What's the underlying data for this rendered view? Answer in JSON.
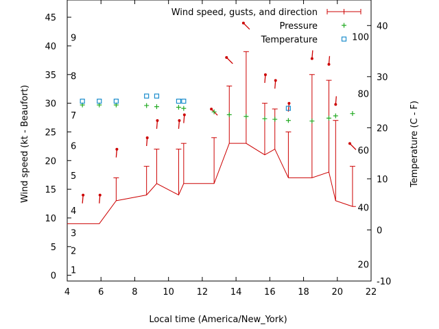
{
  "chart_data": {
    "type": "line",
    "xlabel": "Local time (America/New_York)",
    "ylabel_left": "Wind speed (kt - Beaufort)",
    "ylabel_right": "Temperature (C - F)",
    "xlim": [
      4,
      22
    ],
    "x_ticks": [
      "4",
      "6",
      "8",
      "10",
      "12",
      "14",
      "16",
      "18",
      "20",
      "22"
    ],
    "ylim_left": [
      -1,
      48
    ],
    "y_ticks_left": [
      "0",
      "5",
      "10",
      "15",
      "20",
      "25",
      "30",
      "35",
      "40",
      "45"
    ],
    "ylim_right": [
      -10,
      45
    ],
    "y_ticks_right": [
      "-10",
      "0",
      "10",
      "20",
      "30",
      "40"
    ],
    "beaufort_labels": [
      {
        "text": "1",
        "y": 1
      },
      {
        "text": "2",
        "y": 4.3
      },
      {
        "text": "3",
        "y": 7.4
      },
      {
        "text": "4",
        "y": 11.3
      },
      {
        "text": "5",
        "y": 17.4
      },
      {
        "text": "6",
        "y": 22.6
      },
      {
        "text": "7",
        "y": 27.9
      },
      {
        "text": "8",
        "y": 34.8
      },
      {
        "text": "9",
        "y": 41.5
      }
    ],
    "fahrenheit_labels": [
      {
        "text": "20",
        "y": -6.7
      },
      {
        "text": "40",
        "y": 4.4
      },
      {
        "text": "60",
        "y": 15.6
      },
      {
        "text": "80",
        "y": 26.7
      },
      {
        "text": "100",
        "y": 37.8
      }
    ],
    "legend": {
      "placement": "top-right",
      "entries": [
        {
          "label": "Wind speed, gusts, and direction",
          "color": "#cc0000"
        },
        {
          "label": "Pressure",
          "color": "#22aa22"
        },
        {
          "label": "Temperature",
          "color": "#1a8ccc"
        }
      ]
    },
    "series": [
      {
        "name": "Wind speed, gusts, and direction",
        "color": "#cc0000",
        "x": [
          4,
          4.9,
          5.9,
          6.9,
          8.7,
          9.3,
          10.6,
          10.9,
          12.7,
          13.6,
          14.6,
          15.7,
          16.3,
          17.1,
          18.5,
          19.5,
          19.9,
          20.9,
          21.1
        ],
        "wind": [
          9,
          9,
          9,
          13,
          14,
          16,
          14,
          16,
          16,
          23,
          23,
          21,
          22,
          17,
          17,
          18,
          13,
          12,
          12
        ],
        "gust": [
          null,
          null,
          null,
          17,
          19,
          22,
          22,
          23,
          24,
          33,
          39,
          30,
          29,
          25,
          35,
          34,
          27,
          19,
          null
        ],
        "barb_y": [
          null,
          13.5,
          13.5,
          21.5,
          23.5,
          26.5,
          26.5,
          27.5,
          28.5,
          37.5,
          43.5,
          34.5,
          33.5,
          29.5,
          38.5,
          37.5,
          30.5,
          22.5,
          null
        ],
        "barb_dir": [
          null,
          1,
          1,
          1,
          1,
          1,
          1,
          1,
          -1,
          -1,
          -1,
          1,
          1,
          1,
          0,
          0,
          0,
          -1,
          null
        ]
      },
      {
        "name": "Pressure",
        "color": "#22aa22",
        "x": [
          4.9,
          5.9,
          6.9,
          8.7,
          9.3,
          10.6,
          10.9,
          12.7,
          13.6,
          14.6,
          15.7,
          16.3,
          17.1,
          18.5,
          19.5,
          19.9,
          20.9
        ],
        "values": [
          29.7,
          29.7,
          29.7,
          29.6,
          29.4,
          29.3,
          29.1,
          28.5,
          28.0,
          27.7,
          27.3,
          27.2,
          27.0,
          26.9,
          27.4,
          27.8,
          28.2
        ]
      },
      {
        "name": "Temperature",
        "color": "#1a8ccc",
        "x": [
          4.9,
          5.9,
          6.9,
          8.7,
          9.3,
          10.6,
          10.9,
          17.1
        ],
        "values_c": [
          25.2,
          25.2,
          25.2,
          26.2,
          26.2,
          25.2,
          25.2,
          23.8
        ]
      }
    ],
    "grid": false
  }
}
